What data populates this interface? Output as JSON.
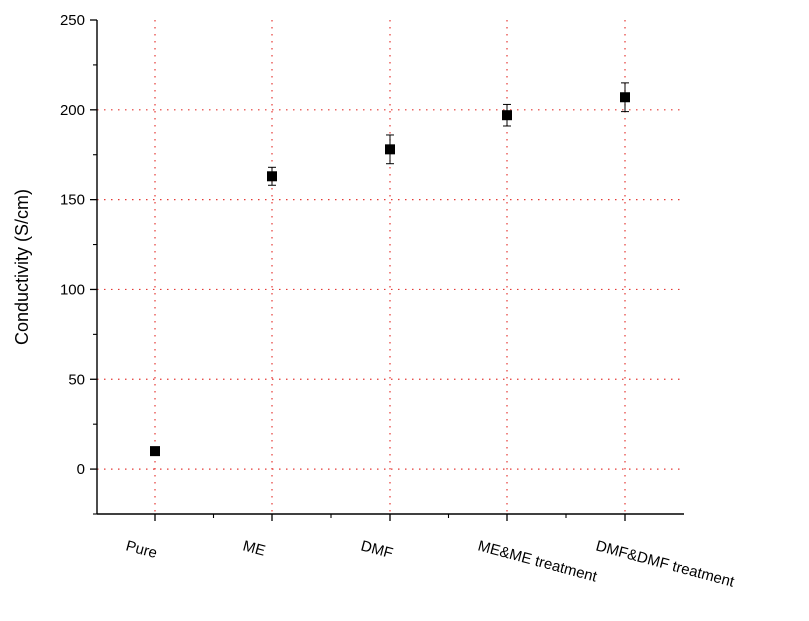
{
  "chart_data": {
    "type": "scatter",
    "title": "",
    "xlabel": "",
    "ylabel": "Conductivity (S/cm)",
    "categories": [
      "Pure",
      "ME",
      "DMF",
      "ME&ME treatment",
      "DMF&DMF treatment"
    ],
    "series": [
      {
        "values": [
          10,
          163,
          178,
          197,
          207
        ],
        "errors": [
          2,
          5,
          8,
          6,
          8
        ]
      }
    ],
    "ylim": [
      -25,
      250
    ],
    "yticks": [
      0,
      50,
      100,
      150,
      200,
      250
    ],
    "grid": true,
    "colors": {
      "grid": "#e53935",
      "marker": "#000000",
      "axis": "#000000"
    }
  }
}
